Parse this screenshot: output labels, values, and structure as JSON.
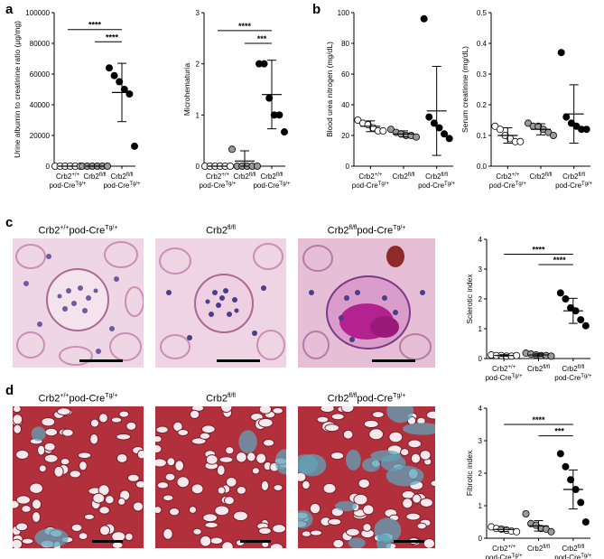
{
  "panels": {
    "a": "a",
    "b": "b",
    "c": "c",
    "d": "d"
  },
  "micrographs": {
    "c": [
      {
        "title_base": "Crb2",
        "title_sup": "+/+",
        "title_rest": "pod-Cre",
        "title_sup2": "Tg/+"
      },
      {
        "title_base": "Crb2",
        "title_sup": "fl/fl",
        "title_rest": "",
        "title_sup2": ""
      },
      {
        "title_base": "Crb2",
        "title_sup": "fl/fl",
        "title_rest": "pod-Cre",
        "title_sup2": "Tg/+"
      }
    ],
    "d": [
      {
        "title_base": "Crb2",
        "title_sup": "+/+",
        "title_rest": "pod-Cre",
        "title_sup2": "Tg/+"
      },
      {
        "title_base": "Crb2",
        "title_sup": "fl/fl",
        "title_rest": "",
        "title_sup2": ""
      },
      {
        "title_base": "Crb2",
        "title_sup": "fl/fl",
        "title_rest": "pod-Cre",
        "title_sup2": "Tg/+"
      }
    ]
  },
  "colors": {
    "group_fill": [
      "#ffffff",
      "#9a9a9a",
      "#000000"
    ],
    "pas_bg": "#e9c9dc",
    "trichrome_bg": "#b8323e"
  },
  "chart_data": [
    {
      "id": "uacr",
      "type": "scatter",
      "panel": "a",
      "ylabel": "Urine albumin to creatinine ratio (μg/mg)",
      "ylim": [
        0,
        100000
      ],
      "yticks": [
        "0",
        "20000",
        "40000",
        "60000",
        "80000",
        "100000"
      ],
      "categories": [
        "Crb2+/+ pod-CreTg/+",
        "Crb2fl/fl",
        "Crb2fl/fl pod-CreTg/+"
      ],
      "groups": [
        {
          "values": [
            0,
            0,
            0,
            0,
            0,
            0
          ],
          "mean": 0,
          "sd": 0
        },
        {
          "values": [
            0,
            0,
            0,
            0,
            0,
            0
          ],
          "mean": 0,
          "sd": 0
        },
        {
          "values": [
            64000,
            59000,
            55000,
            50000,
            47000,
            13000
          ],
          "mean": 48000,
          "sd": 19000
        }
      ],
      "significance": [
        {
          "from": 0,
          "to": 2,
          "label": "****",
          "y": 89000
        },
        {
          "from": 1,
          "to": 2,
          "label": "****",
          "y": 81000
        }
      ]
    },
    {
      "id": "microhematuria",
      "type": "scatter",
      "panel": "a",
      "ylabel": "Microhematuria",
      "ylim": [
        0,
        3
      ],
      "yticks": [
        "0",
        "1",
        "2",
        "3"
      ],
      "categories": [
        "Crb2+/+ pod-CreTg/+",
        "Crb2fl/fl",
        "Crb2fl/fl pod-CreTg/+"
      ],
      "groups": [
        {
          "values": [
            0,
            0,
            0,
            0,
            0,
            0
          ],
          "mean": 0,
          "sd": 0
        },
        {
          "values": [
            0.33,
            0,
            0,
            0,
            0,
            0
          ],
          "mean": 0.1,
          "sd": 0.2
        },
        {
          "values": [
            2.0,
            2.0,
            1.33,
            1.0,
            1.0,
            0.67
          ],
          "mean": 1.4,
          "sd": 0.67
        }
      ],
      "significance": [
        {
          "from": 0,
          "to": 2,
          "label": "****",
          "y": 2.65
        },
        {
          "from": 1,
          "to": 2,
          "label": "***",
          "y": 2.4
        }
      ]
    },
    {
      "id": "bun",
      "type": "scatter",
      "panel": "b",
      "ylabel": "Blood urea nitrogen (mg/dL)",
      "ylim": [
        0,
        100
      ],
      "yticks": [
        "0",
        "20",
        "40",
        "60",
        "80",
        "100"
      ],
      "categories": [
        "Crb2+/+ pod-CreTg/+",
        "Crb2fl/fl",
        "Crb2fl/fl pod-CreTg/+"
      ],
      "groups": [
        {
          "values": [
            30,
            28,
            27,
            25,
            23,
            23
          ],
          "mean": 26,
          "sd": 3.5
        },
        {
          "values": [
            24,
            22,
            21,
            20,
            20,
            19
          ],
          "mean": 21,
          "sd": 2
        },
        {
          "values": [
            96,
            32,
            28,
            25,
            21,
            18
          ],
          "mean": 36,
          "sd": 29
        }
      ],
      "significance": []
    },
    {
      "id": "creatinine",
      "type": "scatter",
      "panel": "b",
      "ylabel": "Serum creatinine (mg/dL)",
      "ylim": [
        0,
        0.5
      ],
      "yticks": [
        "0.0",
        "0.1",
        "0.2",
        "0.3",
        "0.4",
        "0.5"
      ],
      "categories": [
        "Crb2+/+ pod-CreTg/+",
        "Crb2fl/fl",
        "Crb2fl/fl pod-CreTg/+"
      ],
      "groups": [
        {
          "values": [
            0.13,
            0.12,
            0.1,
            0.09,
            0.08,
            0.08
          ],
          "mean": 0.1,
          "sd": 0.025
        },
        {
          "values": [
            0.14,
            0.13,
            0.13,
            0.12,
            0.11,
            0.1
          ],
          "mean": 0.12,
          "sd": 0.018
        },
        {
          "values": [
            0.37,
            0.16,
            0.14,
            0.13,
            0.12,
            0.12
          ],
          "mean": 0.17,
          "sd": 0.095
        }
      ],
      "significance": []
    },
    {
      "id": "sclerotic",
      "type": "scatter",
      "panel": "c",
      "ylabel": "Sclerotic index",
      "ylim": [
        0,
        4
      ],
      "yticks": [
        "0",
        "1",
        "2",
        "3",
        "4"
      ],
      "categories": [
        "Crb2+/+ pod-CreTg/+",
        "Crb2fl/fl",
        "Crb2fl/fl pod-CreTg/+"
      ],
      "groups": [
        {
          "values": [
            0.12,
            0.1,
            0.1,
            0.08,
            0.08,
            0.1
          ],
          "mean": 0.1,
          "sd": 0.03
        },
        {
          "values": [
            0.18,
            0.15,
            0.12,
            0.1,
            0.1,
            0.08
          ],
          "mean": 0.12,
          "sd": 0.04
        },
        {
          "values": [
            2.2,
            2.0,
            1.7,
            1.6,
            1.3,
            1.1
          ],
          "mean": 1.6,
          "sd": 0.42
        }
      ],
      "significance": [
        {
          "from": 0,
          "to": 2,
          "label": "****",
          "y": 3.5
        },
        {
          "from": 1,
          "to": 2,
          "label": "****",
          "y": 3.15
        }
      ]
    },
    {
      "id": "fibrotic",
      "type": "scatter",
      "panel": "d",
      "ylabel": "Fibrotic index",
      "ylim": [
        0,
        4
      ],
      "yticks": [
        "0",
        "1",
        "2",
        "3",
        "4"
      ],
      "categories": [
        "Crb2+/+ pod-CreTg/+",
        "Crb2fl/fl",
        "Crb2fl/fl pod-CreTg/+"
      ],
      "groups": [
        {
          "values": [
            0.35,
            0.3,
            0.28,
            0.25,
            0.22,
            0.2
          ],
          "mean": 0.27,
          "sd": 0.06
        },
        {
          "values": [
            0.75,
            0.45,
            0.4,
            0.3,
            0.28,
            0.2
          ],
          "mean": 0.38,
          "sd": 0.16
        },
        {
          "values": [
            2.6,
            2.2,
            1.8,
            1.5,
            1.1,
            0.5
          ],
          "mean": 1.5,
          "sd": 0.6
        }
      ],
      "significance": [
        {
          "from": 0,
          "to": 2,
          "label": "****",
          "y": 3.5
        },
        {
          "from": 1,
          "to": 2,
          "label": "***",
          "y": 3.15
        }
      ]
    }
  ]
}
